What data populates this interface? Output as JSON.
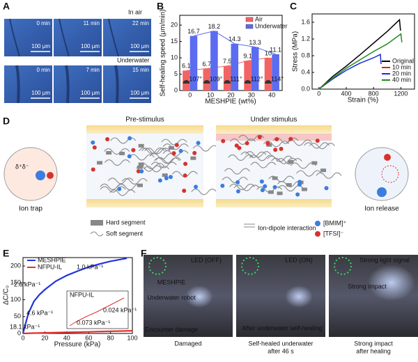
{
  "panel_labels": [
    "A",
    "B",
    "C",
    "D",
    "E",
    "F"
  ],
  "panel_a": {
    "conditions": [
      {
        "name": "In air",
        "times": [
          "0 min",
          "11 min",
          "22 min"
        ]
      },
      {
        "name": "Underwater",
        "times": [
          "0 min",
          "7 min",
          "15 min"
        ]
      }
    ],
    "scale_bar": "100 μm"
  },
  "chart_data": [
    {
      "type": "bar",
      "y_label": "Self-healing speed (μm/min)",
      "x_label": "MESHPIE (wt%)",
      "categories": [
        "0",
        "10",
        "20",
        "30",
        "40"
      ],
      "series": [
        {
          "name": "Air",
          "color": "#f26464",
          "values": [
            6.1,
            6.7,
            7.5,
            9.1,
            10
          ]
        },
        {
          "name": "Underwater",
          "color": "#5b6cf0",
          "values": [
            16.7,
            18.2,
            14.3,
            13.3,
            11.1
          ]
        }
      ],
      "annotations": [
        "107°",
        "109°",
        "111°",
        "112°",
        "114°"
      ],
      "ylim": [
        0,
        23
      ],
      "yticks": [
        0,
        5,
        10,
        15,
        20
      ],
      "legend": "upper right"
    },
    {
      "type": "line",
      "y_label": "Stress (MPa)",
      "x_label": "Strain (%)",
      "xlim": [
        -100,
        1400
      ],
      "xticks": [
        0,
        400,
        800,
        1200
      ],
      "ylim": [
        0,
        1.8
      ],
      "yticks": [
        {
          "value": 0,
          "label": "0.0"
        },
        0.4,
        0.8,
        1.2,
        1.6
      ],
      "legend": "lower right",
      "series": [
        {
          "name": "Original",
          "color": "#000000",
          "x": [
            0,
            200,
            400,
            600,
            800,
            1000,
            1180,
            1195
          ],
          "values": [
            0,
            0.3,
            0.55,
            0.82,
            1.1,
            1.38,
            1.66,
            1.4
          ]
        },
        {
          "name": "10 min",
          "color": "#e02020",
          "x": [
            0,
            100,
            200,
            250
          ],
          "values": [
            0,
            0.14,
            0.25,
            0.3
          ]
        },
        {
          "name": "20 min",
          "color": "#1a2cd8",
          "x": [
            0,
            200,
            400,
            600,
            800,
            900,
            910
          ],
          "values": [
            0,
            0.24,
            0.45,
            0.62,
            0.75,
            0.83,
            0.6
          ]
        },
        {
          "name": "40 min",
          "color": "#1f8a1f",
          "x": [
            0,
            200,
            400,
            600,
            800,
            1000,
            1200,
            1215
          ],
          "values": [
            0,
            0.26,
            0.5,
            0.7,
            0.9,
            1.08,
            1.32,
            1.12
          ]
        }
      ]
    },
    {
      "type": "line",
      "y_label": "ΔC/C₀",
      "x_label": "Pressure (kPa)",
      "xlim": [
        0,
        100
      ],
      "xticks": [
        0,
        20,
        40,
        60,
        80,
        100
      ],
      "ylim": [
        0,
        225
      ],
      "yticks": [
        0,
        50,
        100,
        150,
        200
      ],
      "legend": "upper left",
      "series": [
        {
          "name": "MESHPIE",
          "color": "#2233dd",
          "x": [
            0,
            2,
            5,
            10,
            15,
            20,
            30,
            40,
            50,
            60,
            70,
            80,
            90,
            95
          ],
          "values": [
            0,
            25,
            60,
            95,
            115,
            130,
            155,
            172,
            185,
            197,
            206,
            214,
            220,
            223
          ]
        },
        {
          "name": "NFPU-IL",
          "color": "#e03030",
          "x": [
            0,
            10,
            20,
            30,
            40,
            50,
            60,
            70,
            80,
            90,
            100
          ],
          "values": [
            0,
            1,
            1.8,
            2.6,
            3.3,
            4,
            4.8,
            5.6,
            6.4,
            7.2,
            8
          ]
        }
      ],
      "annotations": [
        "1.0 kPa⁻¹",
        "2.8 kPa⁻¹",
        "4.6 kPa⁻¹",
        "18.1 kPa⁻¹"
      ],
      "inset": {
        "title": "NFPU-IL",
        "annotations": [
          "0.024 kPa⁻¹",
          "0.073 kPa⁻¹"
        ]
      }
    }
  ],
  "panel_d": {
    "states": [
      "Pre-stimulus",
      "Under stimulus"
    ],
    "left": "Ion trap",
    "right": "Ion release",
    "dipole": "δ⁺δ⁻",
    "legend": [
      "Hard segment",
      "Soft segment",
      "Ion-dipole interaction",
      "[BMIM]⁺",
      "[TFSI]⁻"
    ]
  },
  "panel_f": {
    "photos": [
      {
        "notes": [
          "LED (OFF)",
          "MESHPIE",
          "Underwater robot",
          "Encounter damage"
        ],
        "caption": [
          "Damaged"
        ]
      },
      {
        "notes": [
          "LED (ON)",
          "After underwater self-healing"
        ],
        "caption": [
          "Self-healed underwater",
          "after 46 s"
        ]
      },
      {
        "notes": [
          "Strong light signal",
          "Strong impact"
        ],
        "caption": [
          "Strong impact",
          "after healing"
        ]
      }
    ]
  }
}
